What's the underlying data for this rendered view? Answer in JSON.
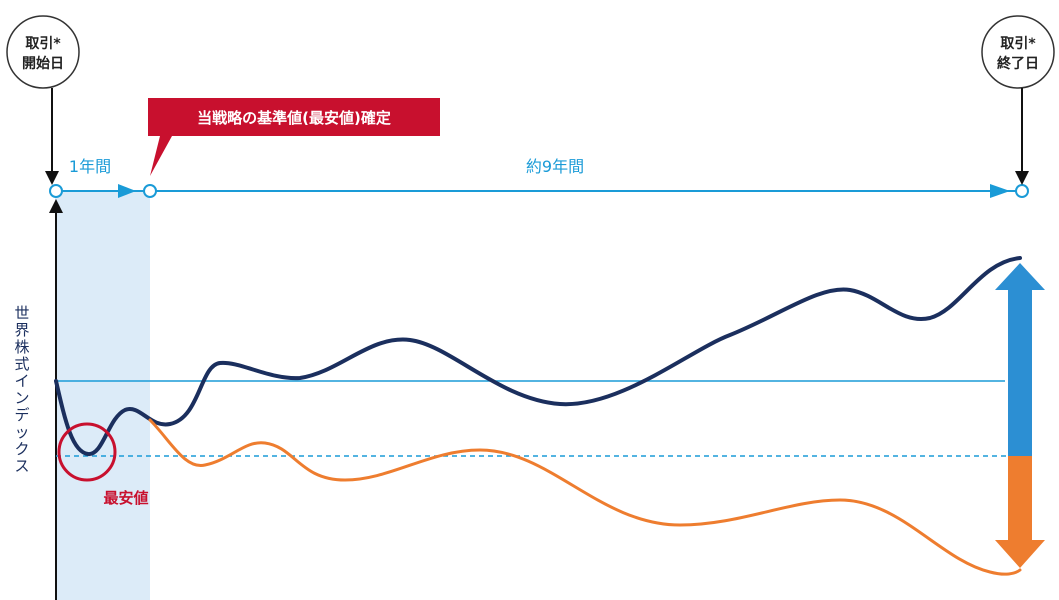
{
  "start_label": [
    "取引*",
    "開始日"
  ],
  "end_label": [
    "取引*",
    "終了日"
  ],
  "callout": "当戦略の基準値(最安値)確定",
  "period_first": "1年間",
  "period_rest": "約9年間",
  "y_axis_label": [
    "世",
    "界",
    "株",
    "式",
    "イ",
    "ン",
    "デ",
    "ッ",
    "ク",
    "ス"
  ],
  "lowest_label": "最安値",
  "colors": {
    "timeline": "#1a9bd7",
    "index_line": "#1b2f5e",
    "strategy_line": "#ee7d2f",
    "callout_bg": "#c8102e",
    "lowest_marker": "#c8102e",
    "shade": "#dcebf8",
    "up_arrow": "#2c8fd3",
    "down_arrow": "#ee7d2f"
  }
}
